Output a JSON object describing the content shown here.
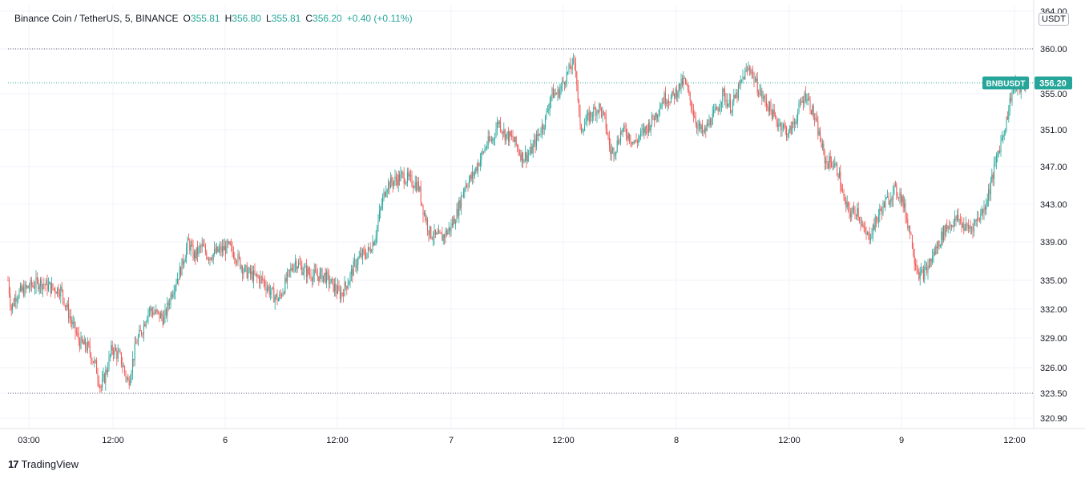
{
  "legend": {
    "symbol": "Binance Coin / TetherUS, 5, BINANCE",
    "open_label": "O",
    "open": "355.81",
    "high_label": "H",
    "high": "356.80",
    "low_label": "L",
    "low": "355.81",
    "close_label": "C",
    "close": "356.20",
    "change": "+0.40 (+0.11%)"
  },
  "currency": "USDT",
  "last_price": {
    "ticker": "BNBUSDT",
    "value": "356.20"
  },
  "brand": {
    "logo": "17",
    "name": "TradingView"
  },
  "colors": {
    "up": "#26a69a",
    "down": "#ef5350",
    "grid": "#f0f3fa",
    "text": "#131722",
    "axis": "#e0e3eb"
  },
  "chart_data": {
    "type": "candlestick",
    "symbol": "BNBUSDT",
    "interval": "5",
    "ylim": [
      320.0,
      364.0
    ],
    "y_ticks": [
      "364.00",
      "360.00",
      "355.00",
      "351.00",
      "347.00",
      "343.00",
      "339.00",
      "335.00",
      "332.00",
      "329.00",
      "326.00",
      "323.50",
      "320.90"
    ],
    "x_ticks": [
      "03:00",
      "12:00",
      "6",
      "12:00",
      "7",
      "12:00",
      "8",
      "12:00",
      "9",
      "12:00"
    ],
    "reference_lines": [
      360.0,
      356.2,
      323.5
    ],
    "grid": true,
    "close_path": [
      [
        0,
        335.0
      ],
      [
        4,
        332.0
      ],
      [
        10,
        333.5
      ],
      [
        20,
        334.0
      ],
      [
        30,
        334.5
      ],
      [
        40,
        334.8
      ],
      [
        55,
        334.2
      ],
      [
        66,
        334.0
      ],
      [
        74,
        332.0
      ],
      [
        80,
        330.5
      ],
      [
        90,
        328.5
      ],
      [
        100,
        328.0
      ],
      [
        110,
        326.0
      ],
      [
        116,
        324.0
      ],
      [
        122,
        325.5
      ],
      [
        130,
        328.0
      ],
      [
        140,
        327.0
      ],
      [
        150,
        324.5
      ],
      [
        160,
        328.5
      ],
      [
        168,
        330.0
      ],
      [
        175,
        332.0
      ],
      [
        186,
        331.5
      ],
      [
        195,
        331.0
      ],
      [
        205,
        334.0
      ],
      [
        215,
        336.0
      ],
      [
        225,
        339.0
      ],
      [
        232,
        337.5
      ],
      [
        242,
        338.5
      ],
      [
        250,
        337.5
      ],
      [
        262,
        338.0
      ],
      [
        275,
        338.5
      ],
      [
        285,
        337.5
      ],
      [
        295,
        336.0
      ],
      [
        305,
        335.5
      ],
      [
        318,
        335.0
      ],
      [
        330,
        333.5
      ],
      [
        338,
        333.0
      ],
      [
        350,
        335.5
      ],
      [
        358,
        337.0
      ],
      [
        370,
        336.0
      ],
      [
        382,
        335.5
      ],
      [
        395,
        335.5
      ],
      [
        405,
        334.5
      ],
      [
        415,
        333.5
      ],
      [
        425,
        335.0
      ],
      [
        432,
        336.5
      ],
      [
        440,
        337.5
      ],
      [
        450,
        338.0
      ],
      [
        458,
        339.5
      ],
      [
        465,
        342.5
      ],
      [
        472,
        345.0
      ],
      [
        482,
        345.5
      ],
      [
        492,
        346.0
      ],
      [
        502,
        345.5
      ],
      [
        512,
        345.0
      ],
      [
        518,
        342.5
      ],
      [
        526,
        340.0
      ],
      [
        534,
        339.5
      ],
      [
        542,
        339.5
      ],
      [
        552,
        340.5
      ],
      [
        560,
        342.0
      ],
      [
        570,
        345.0
      ],
      [
        580,
        346.0
      ],
      [
        590,
        348.0
      ],
      [
        598,
        349.5
      ],
      [
        605,
        350.0
      ],
      [
        612,
        352.0
      ],
      [
        620,
        350.5
      ],
      [
        630,
        350.0
      ],
      [
        642,
        348.0
      ],
      [
        652,
        348.5
      ],
      [
        662,
        350.5
      ],
      [
        670,
        352.0
      ],
      [
        678,
        355.0
      ],
      [
        686,
        355.0
      ],
      [
        694,
        356.5
      ],
      [
        702,
        358.0
      ],
      [
        708,
        358.5
      ],
      [
        714,
        351.0
      ],
      [
        722,
        352.0
      ],
      [
        730,
        353.0
      ],
      [
        738,
        353.5
      ],
      [
        745,
        352.0
      ],
      [
        752,
        348.5
      ],
      [
        758,
        349.0
      ],
      [
        766,
        351.0
      ],
      [
        774,
        350.5
      ],
      [
        782,
        349.5
      ],
      [
        790,
        350.5
      ],
      [
        800,
        351.5
      ],
      [
        810,
        353.0
      ],
      [
        818,
        354.5
      ],
      [
        828,
        354.5
      ],
      [
        836,
        355.5
      ],
      [
        844,
        356.5
      ],
      [
        852,
        354.0
      ],
      [
        860,
        351.5
      ],
      [
        868,
        350.5
      ],
      [
        876,
        352.0
      ],
      [
        884,
        353.0
      ],
      [
        892,
        355.0
      ],
      [
        902,
        353.5
      ],
      [
        910,
        355.0
      ],
      [
        918,
        357.0
      ],
      [
        926,
        358.0
      ],
      [
        934,
        356.0
      ],
      [
        942,
        354.5
      ],
      [
        950,
        353.5
      ],
      [
        958,
        352.0
      ],
      [
        966,
        351.5
      ],
      [
        974,
        350.5
      ],
      [
        982,
        352.0
      ],
      [
        990,
        354.0
      ],
      [
        996,
        355.0
      ],
      [
        1004,
        353.0
      ],
      [
        1012,
        350.5
      ],
      [
        1020,
        347.5
      ],
      [
        1028,
        347.5
      ],
      [
        1036,
        346.5
      ],
      [
        1044,
        343.0
      ],
      [
        1052,
        342.0
      ],
      [
        1060,
        342.5
      ],
      [
        1068,
        340.0
      ],
      [
        1074,
        339.5
      ],
      [
        1082,
        341.0
      ],
      [
        1090,
        342.5
      ],
      [
        1098,
        343.5
      ],
      [
        1106,
        344.5
      ],
      [
        1114,
        344.0
      ],
      [
        1120,
        342.0
      ],
      [
        1126,
        340.0
      ],
      [
        1132,
        337.0
      ],
      [
        1138,
        335.5
      ],
      [
        1146,
        336.0
      ],
      [
        1154,
        337.5
      ],
      [
        1162,
        339.0
      ],
      [
        1170,
        340.5
      ],
      [
        1178,
        341.0
      ],
      [
        1186,
        341.5
      ],
      [
        1194,
        340.5
      ],
      [
        1202,
        340.5
      ],
      [
        1210,
        341.5
      ],
      [
        1218,
        342.5
      ],
      [
        1226,
        345.0
      ],
      [
        1234,
        348.0
      ],
      [
        1240,
        350.0
      ],
      [
        1246,
        352.0
      ],
      [
        1252,
        355.0
      ],
      [
        1258,
        356.0
      ],
      [
        1264,
        355.5
      ],
      [
        1270,
        356.2
      ]
    ],
    "last": {
      "open": 355.81,
      "high": 356.8,
      "low": 355.81,
      "close": 356.2
    }
  }
}
